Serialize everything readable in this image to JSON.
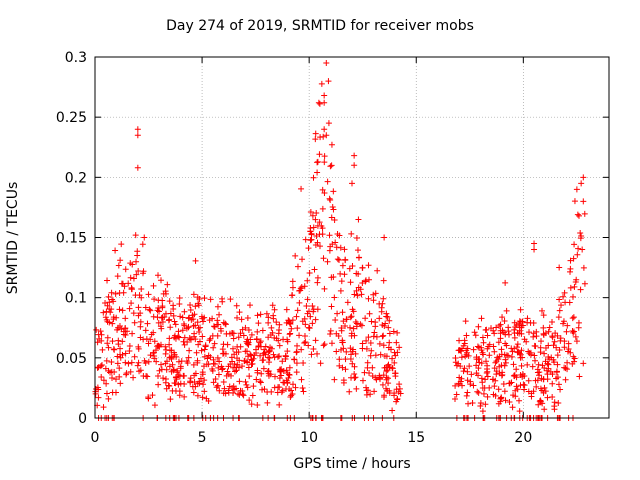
{
  "chart_data": {
    "type": "scatter",
    "title": "Day 274 of 2019, SRMTID for receiver mobs",
    "xlabel": "GPS time / hours",
    "ylabel": "SRMTID / TECUs",
    "xlim": [
      0,
      24
    ],
    "ylim": [
      0,
      0.3
    ],
    "xticks": [
      0,
      5,
      10,
      15,
      20
    ],
    "yticks": [
      0,
      0.05,
      0.1,
      0.15,
      0.2,
      0.25,
      0.3
    ],
    "grid": true,
    "marker": "+",
    "color": "#ff0000",
    "data_gap_hours": [
      14.3,
      16.8
    ],
    "envelope": [
      {
        "x": 0.0,
        "y": 0.045
      },
      {
        "x": 0.5,
        "y": 0.055
      },
      {
        "x": 1.0,
        "y": 0.065
      },
      {
        "x": 1.5,
        "y": 0.07
      },
      {
        "x": 2.0,
        "y": 0.085
      },
      {
        "x": 2.5,
        "y": 0.07
      },
      {
        "x": 3.0,
        "y": 0.06
      },
      {
        "x": 4.0,
        "y": 0.055
      },
      {
        "x": 5.0,
        "y": 0.055
      },
      {
        "x": 6.0,
        "y": 0.05
      },
      {
        "x": 7.0,
        "y": 0.045
      },
      {
        "x": 8.0,
        "y": 0.05
      },
      {
        "x": 9.0,
        "y": 0.055
      },
      {
        "x": 9.8,
        "y": 0.09
      },
      {
        "x": 10.5,
        "y": 0.14
      },
      {
        "x": 11.0,
        "y": 0.15
      },
      {
        "x": 11.5,
        "y": 0.08
      },
      {
        "x": 12.0,
        "y": 0.09
      },
      {
        "x": 12.5,
        "y": 0.08
      },
      {
        "x": 13.0,
        "y": 0.065
      },
      {
        "x": 13.5,
        "y": 0.055
      },
      {
        "x": 14.2,
        "y": 0.04
      },
      {
        "x": 16.8,
        "y": 0.035
      },
      {
        "x": 17.5,
        "y": 0.04
      },
      {
        "x": 18.5,
        "y": 0.045
      },
      {
        "x": 19.5,
        "y": 0.045
      },
      {
        "x": 20.2,
        "y": 0.05
      },
      {
        "x": 20.8,
        "y": 0.04
      },
      {
        "x": 21.5,
        "y": 0.05
      },
      {
        "x": 22.0,
        "y": 0.07
      },
      {
        "x": 22.5,
        "y": 0.1
      },
      {
        "x": 22.9,
        "y": 0.12
      }
    ],
    "notable_points": [
      {
        "x": 2.0,
        "y": 0.24
      },
      {
        "x": 2.0,
        "y": 0.235
      },
      {
        "x": 2.0,
        "y": 0.208
      },
      {
        "x": 1.9,
        "y": 0.152
      },
      {
        "x": 2.3,
        "y": 0.15
      },
      {
        "x": 10.8,
        "y": 0.295
      },
      {
        "x": 10.9,
        "y": 0.28
      },
      {
        "x": 10.7,
        "y": 0.268
      },
      {
        "x": 10.7,
        "y": 0.262
      },
      {
        "x": 10.7,
        "y": 0.24
      },
      {
        "x": 10.8,
        "y": 0.235
      },
      {
        "x": 12.1,
        "y": 0.218
      },
      {
        "x": 12.1,
        "y": 0.21
      },
      {
        "x": 12.0,
        "y": 0.195
      },
      {
        "x": 12.3,
        "y": 0.165
      },
      {
        "x": 13.5,
        "y": 0.15
      },
      {
        "x": 22.8,
        "y": 0.2
      },
      {
        "x": 22.7,
        "y": 0.195
      },
      {
        "x": 22.5,
        "y": 0.19
      },
      {
        "x": 22.8,
        "y": 0.18
      },
      {
        "x": 22.6,
        "y": 0.168
      },
      {
        "x": 20.5,
        "y": 0.145
      },
      {
        "x": 20.5,
        "y": 0.14
      }
    ]
  }
}
